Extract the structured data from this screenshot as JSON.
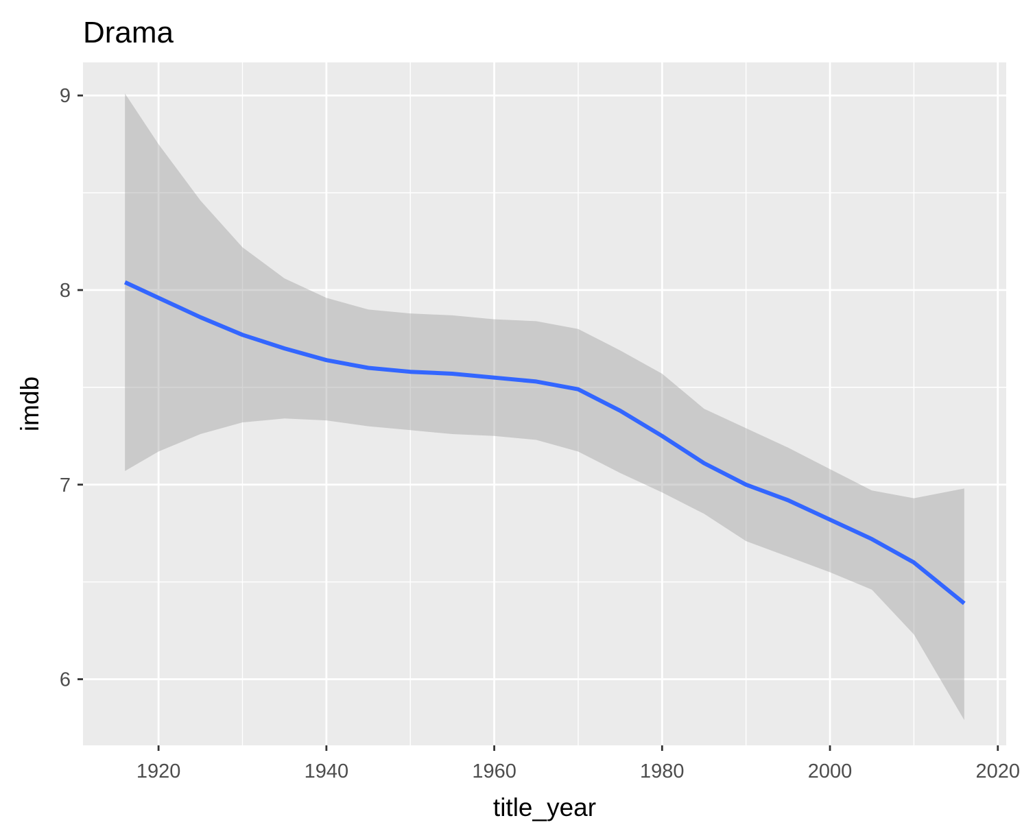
{
  "chart_data": {
    "type": "line",
    "title": "Drama",
    "xlabel": "title_year",
    "ylabel": "imdb",
    "xlim": [
      1911,
      2021
    ],
    "ylim": [
      5.66,
      9.17
    ],
    "x_ticks": [
      1920,
      1940,
      1960,
      1980,
      2000,
      2020
    ],
    "x_minor_ticks": [
      1910,
      1930,
      1950,
      1970,
      1990,
      2010
    ],
    "y_ticks": [
      6,
      7,
      8,
      9
    ],
    "y_minor_ticks": [
      6.5,
      7.5,
      8.5
    ],
    "grid": true,
    "legend": "none",
    "series": [
      {
        "x": [
          1916,
          1920,
          1925,
          1930,
          1935,
          1940,
          1945,
          1950,
          1955,
          1960,
          1965,
          1970,
          1975,
          1980,
          1985,
          1990,
          1995,
          2000,
          2005,
          2010,
          2016
        ],
        "values": [
          8.04,
          7.96,
          7.86,
          7.77,
          7.7,
          7.64,
          7.6,
          7.58,
          7.57,
          7.55,
          7.53,
          7.49,
          7.38,
          7.25,
          7.11,
          7.0,
          6.92,
          6.82,
          6.72,
          6.6,
          6.39
        ],
        "lower": [
          7.07,
          7.17,
          7.26,
          7.32,
          7.34,
          7.33,
          7.3,
          7.28,
          7.26,
          7.25,
          7.23,
          7.17,
          7.06,
          6.96,
          6.85,
          6.71,
          6.63,
          6.55,
          6.46,
          6.23,
          5.79
        ],
        "upper": [
          9.01,
          8.75,
          8.46,
          8.22,
          8.06,
          7.96,
          7.9,
          7.88,
          7.87,
          7.85,
          7.84,
          7.8,
          7.69,
          7.57,
          7.39,
          7.29,
          7.19,
          7.08,
          6.97,
          6.93,
          6.98
        ]
      }
    ],
    "colors": {
      "line": "#3366FF",
      "band": "#999999",
      "panel": "#EBEBEB",
      "grid": "#FFFFFF"
    }
  }
}
